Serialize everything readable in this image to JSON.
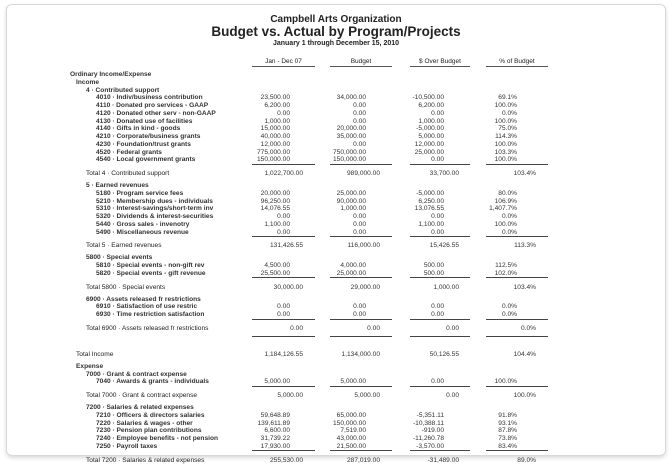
{
  "header": {
    "organization": "Campbell Arts Organization",
    "title": "Budget vs. Actual by Program/Projects",
    "period": "January 1 through December 15, 2010"
  },
  "columns": [
    "Jan - Dec 07",
    "Budget",
    "$ Over Budget",
    "% of Budget"
  ],
  "rows": [
    {
      "type": "section",
      "level": 0,
      "label": "Ordinary Income/Expense"
    },
    {
      "type": "section",
      "level": 1,
      "label": "Income"
    },
    {
      "type": "section",
      "level": 2,
      "label": "4 · Contributed support"
    },
    {
      "type": "item",
      "level": 3,
      "label": "4010 · Indiv/business contribution",
      "values": [
        "23,500.00",
        "34,000.00",
        "-10,500.00",
        "69.1%"
      ]
    },
    {
      "type": "item",
      "level": 3,
      "label": "4110 · Donated pro services - GAAP",
      "values": [
        "6,200.00",
        "0.00",
        "6,200.00",
        "100.0%"
      ]
    },
    {
      "type": "item",
      "level": 3,
      "label": "4120 · Donated other serv - non-GAAP",
      "values": [
        "0.00",
        "0.00",
        "0.00",
        "0.0%"
      ]
    },
    {
      "type": "item",
      "level": 3,
      "label": "4130 · Donated use of facilities",
      "values": [
        "1,000.00",
        "0.00",
        "1,000.00",
        "100.0%"
      ]
    },
    {
      "type": "item",
      "level": 3,
      "label": "4140 · Gifts in kind - goods",
      "values": [
        "15,000.00",
        "20,000.00",
        "-5,000.00",
        "75.0%"
      ]
    },
    {
      "type": "item",
      "level": 3,
      "label": "4210 · Corporate/business grants",
      "values": [
        "40,000.00",
        "35,000.00",
        "5,000.00",
        "114.3%"
      ]
    },
    {
      "type": "item",
      "level": 3,
      "label": "4230 · Foundation/trust grants",
      "values": [
        "12,000.00",
        "0.00",
        "12,000.00",
        "100.0%"
      ]
    },
    {
      "type": "item",
      "level": 3,
      "label": "4520 · Federal grants",
      "values": [
        "775,000.00",
        "750,000.00",
        "25,000.00",
        "103.3%"
      ]
    },
    {
      "type": "item",
      "level": 3,
      "label": "4540 · Local government grants",
      "values": [
        "150,000.00",
        "150,000.00",
        "0.00",
        "100.0%"
      ],
      "rule": true
    },
    {
      "type": "total",
      "level": 2,
      "label": "Total 4 · Contributed support",
      "values": [
        "1,022,700.00",
        "989,000.00",
        "33,700.00",
        "103.4%"
      ]
    },
    {
      "type": "section",
      "level": 2,
      "label": "5 · Earned revenues"
    },
    {
      "type": "item",
      "level": 3,
      "label": "5180 · Program service fees",
      "values": [
        "20,000.00",
        "25,000.00",
        "-5,000.00",
        "80.0%"
      ]
    },
    {
      "type": "item",
      "level": 3,
      "label": "5210 · Membership dues - individuals",
      "values": [
        "96,250.00",
        "90,000.00",
        "6,250.00",
        "106.9%"
      ]
    },
    {
      "type": "item",
      "level": 3,
      "label": "5310 · Interest-savings/short-term inv",
      "values": [
        "14,076.55",
        "1,000.00",
        "13,076.55",
        "1,407.7%"
      ]
    },
    {
      "type": "item",
      "level": 3,
      "label": "5320 · Dividends & interest-securities",
      "values": [
        "0.00",
        "0.00",
        "0.00",
        "0.0%"
      ]
    },
    {
      "type": "item",
      "level": 3,
      "label": "5440 · Gross sales - invenotry",
      "values": [
        "1,100.00",
        "0.00",
        "1,100.00",
        "100.0%"
      ]
    },
    {
      "type": "item",
      "level": 3,
      "label": "5490 · Miscellaneous revenue",
      "values": [
        "0.00",
        "0.00",
        "0.00",
        "0.0%"
      ],
      "rule": true
    },
    {
      "type": "total",
      "level": 2,
      "label": "Total 5 · Earned revenues",
      "values": [
        "131,426.55",
        "116,000.00",
        "15,426.55",
        "113.3%"
      ]
    },
    {
      "type": "section",
      "level": 2,
      "label": "5800 · Special events"
    },
    {
      "type": "item",
      "level": 3,
      "label": "5810 · Special events - non-gift rev",
      "values": [
        "4,500.00",
        "4,000.00",
        "500.00",
        "112.5%"
      ]
    },
    {
      "type": "item",
      "level": 3,
      "label": "5820 · Special events - gift revenue",
      "values": [
        "25,500.00",
        "25,000.00",
        "500.00",
        "102.0%"
      ],
      "rule": true
    },
    {
      "type": "total",
      "level": 2,
      "label": "Total 5800 · Special events",
      "values": [
        "30,000.00",
        "29,000.00",
        "1,000.00",
        "103.4%"
      ]
    },
    {
      "type": "section",
      "level": 2,
      "label": "6900 · Assets released fr restrictions"
    },
    {
      "type": "item",
      "level": 3,
      "label": "6910 · Satisfaction of use restric",
      "values": [
        "0.00",
        "0.00",
        "0.00",
        "0.0%"
      ]
    },
    {
      "type": "item",
      "level": 3,
      "label": "6930 · Time restriction satisfaction",
      "values": [
        "0.00",
        "0.00",
        "0.00",
        "0.0%"
      ],
      "rule": true
    },
    {
      "type": "total",
      "level": 2,
      "label": "Total 6900 · Assets released fr restrictions",
      "values": [
        "0.00",
        "0.00",
        "0.00",
        "0.0%"
      ],
      "rule": true
    },
    {
      "type": "total",
      "level": 1,
      "label": "Total Income",
      "values": [
        "1,184,126.55",
        "1,134,000.00",
        "50,126.55",
        "104.4%"
      ],
      "gap": true
    },
    {
      "type": "section",
      "level": 1,
      "label": "Expense"
    },
    {
      "type": "section",
      "level": 2,
      "label": "7000 · Grant & contract expense"
    },
    {
      "type": "item",
      "level": 3,
      "label": "7040 · Awards & grants - individuals",
      "values": [
        "5,000.00",
        "5,000.00",
        "0.00",
        "100.0%"
      ],
      "rule": true
    },
    {
      "type": "total",
      "level": 2,
      "label": "Total 7000 · Grant & contract expense",
      "values": [
        "5,000.00",
        "5,000.00",
        "0.00",
        "100.0%"
      ]
    },
    {
      "type": "section",
      "level": 2,
      "label": "7200 · Salaries & related expenses"
    },
    {
      "type": "item",
      "level": 3,
      "label": "7210 · Officers & directors salaries",
      "values": [
        "59,648.89",
        "65,000.00",
        "-5,351.11",
        "91.8%"
      ]
    },
    {
      "type": "item",
      "level": 3,
      "label": "7220 · Salaries & wages - other",
      "values": [
        "139,611.89",
        "150,000.00",
        "-10,388.11",
        "93.1%"
      ]
    },
    {
      "type": "item",
      "level": 3,
      "label": "7230 · Pension plan contributions",
      "values": [
        "6,600.00",
        "7,519.00",
        "-919.00",
        "87.8%"
      ]
    },
    {
      "type": "item",
      "level": 3,
      "label": "7240 · Employee benefits - not pension",
      "values": [
        "31,739.22",
        "43,000.00",
        "-11,260.78",
        "73.8%"
      ]
    },
    {
      "type": "item",
      "level": 3,
      "label": "7250 · Payroll taxes",
      "values": [
        "17,930.00",
        "21,500.00",
        "-3,570.00",
        "83.4%"
      ],
      "rule": true
    },
    {
      "type": "total",
      "level": 2,
      "label": "Total 7200 · Salaries & related expenses",
      "values": [
        "255,530.00",
        "287,019.00",
        "-31,489.00",
        "89.0%"
      ]
    }
  ]
}
